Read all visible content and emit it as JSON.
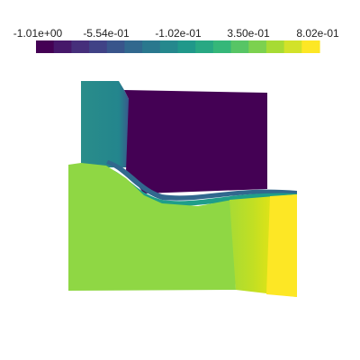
{
  "chart_data": {
    "type": "heatmap",
    "title": "",
    "colormap": "viridis",
    "colorbar": {
      "orientation": "horizontal",
      "placement": "top",
      "range": [
        -1.01,
        0.802
      ],
      "tick_labels": [
        "-1.01e+00",
        "-5.54e-01",
        "-1.02e-01",
        "3.50e-01",
        "8.02e-01"
      ],
      "tick_values": [
        -1.01,
        -0.554,
        -0.102,
        0.35,
        0.802
      ],
      "levels": 16
    },
    "regions": [
      {
        "name": "upper-left-column",
        "value": -0.3
      },
      {
        "name": "upper-right-block",
        "value": -1.01
      },
      {
        "name": "lower-main-block",
        "value": 0.45
      },
      {
        "name": "right-gradient-band",
        "values": [
          0.55,
          0.62,
          0.7,
          0.8
        ]
      }
    ]
  },
  "colors": {
    "viridis": [
      "#440154",
      "#482878",
      "#3e4989",
      "#31688e",
      "#26828e",
      "#1f9e89",
      "#35b779",
      "#6ece58",
      "#b5de2b",
      "#fde725"
    ]
  }
}
